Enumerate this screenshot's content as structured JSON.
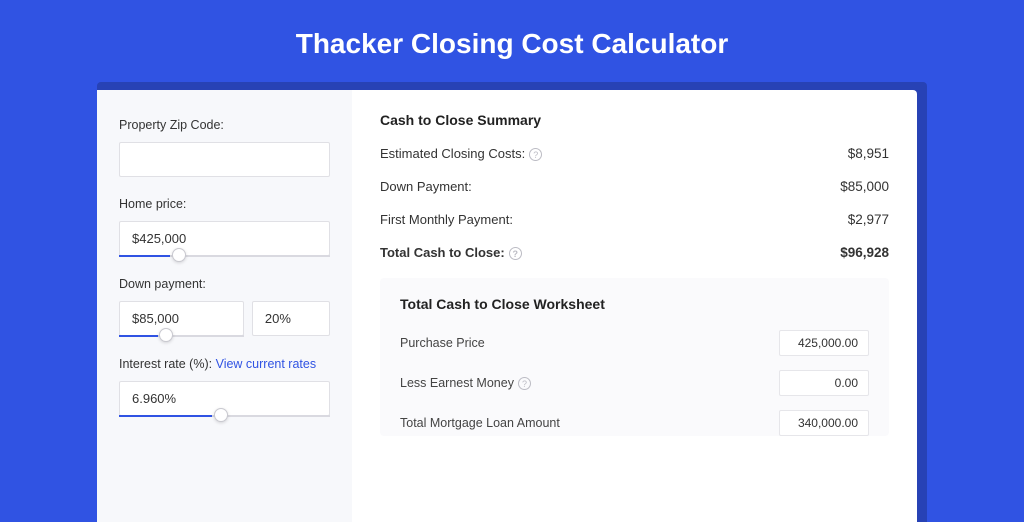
{
  "title": "Thacker Closing Cost Calculator",
  "form": {
    "zip": {
      "label": "Property Zip Code:",
      "value": ""
    },
    "homePrice": {
      "label": "Home price:",
      "value": "$425,000",
      "sliderPct": 25,
      "fillPct": 24
    },
    "downPayment": {
      "label": "Down payment:",
      "amount": "$85,000",
      "pct": "20%",
      "sliderPct": 32,
      "fillPct": 31
    },
    "interestRate": {
      "label": "Interest rate (%):",
      "linkText": "View current rates",
      "value": "6.960%",
      "sliderPct": 45,
      "fillPct": 44
    }
  },
  "summary": {
    "title": "Cash to Close Summary",
    "rows": [
      {
        "label": "Estimated Closing Costs:",
        "help": true,
        "value": "$8,951",
        "bold": false
      },
      {
        "label": "Down Payment:",
        "help": false,
        "value": "$85,000",
        "bold": false
      },
      {
        "label": "First Monthly Payment:",
        "help": false,
        "value": "$2,977",
        "bold": false
      },
      {
        "label": "Total Cash to Close:",
        "help": true,
        "value": "$96,928",
        "bold": true
      }
    ]
  },
  "worksheet": {
    "title": "Total Cash to Close Worksheet",
    "rows": [
      {
        "label": "Purchase Price",
        "help": false,
        "value": "425,000.00"
      },
      {
        "label": "Less Earnest Money",
        "help": true,
        "value": "0.00"
      },
      {
        "label": "Total Mortgage Loan Amount",
        "help": false,
        "value": "340,000.00"
      }
    ]
  }
}
